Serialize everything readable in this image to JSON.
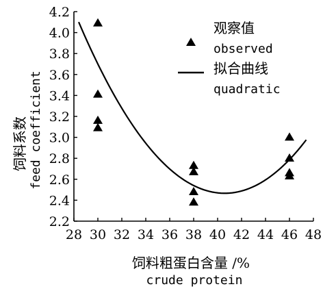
{
  "chart_data": {
    "type": "scatter",
    "xlabel_cn": "饲料粗蛋白含量 /%",
    "xlabel_en": "crude protein",
    "ylabel_cn": "饲料系数",
    "ylabel_en": "feed coefficient",
    "xlim": [
      28,
      48
    ],
    "ylim": [
      2.2,
      4.2
    ],
    "xticks": [
      28,
      30,
      32,
      34,
      36,
      38,
      40,
      42,
      44,
      46,
      48
    ],
    "yticks": [
      2.2,
      2.4,
      2.6,
      2.8,
      3.0,
      3.2,
      3.4,
      3.6,
      3.8,
      4.0,
      4.2
    ],
    "ytick_labels": [
      "2.2",
      "2.4",
      "2.6",
      "2.8",
      "3.0",
      "3.2",
      "3.4",
      "3.6",
      "3.8",
      "4.0",
      "4.2"
    ],
    "grid": false,
    "legend_position": "top-right",
    "series": [
      {
        "kind": "points",
        "name_cn": "观察值",
        "name_en": "observed",
        "marker": "triangle",
        "points": [
          [
            30,
            4.09
          ],
          [
            30,
            3.41
          ],
          [
            30,
            3.16
          ],
          [
            30,
            3.09
          ],
          [
            38,
            2.73
          ],
          [
            38,
            2.67
          ],
          [
            38,
            2.48
          ],
          [
            38,
            2.38
          ],
          [
            46,
            3.0
          ],
          [
            46,
            2.8
          ],
          [
            46,
            2.66
          ],
          [
            46,
            2.63
          ]
        ]
      },
      {
        "kind": "curve",
        "name_cn": "拟合曲线",
        "name_en": "quadratic",
        "x_range": [
          28.4,
          47.4
        ],
        "coefficients": {
          "a": 0.011,
          "b": -0.893,
          "c": 20.59
        }
      }
    ]
  }
}
